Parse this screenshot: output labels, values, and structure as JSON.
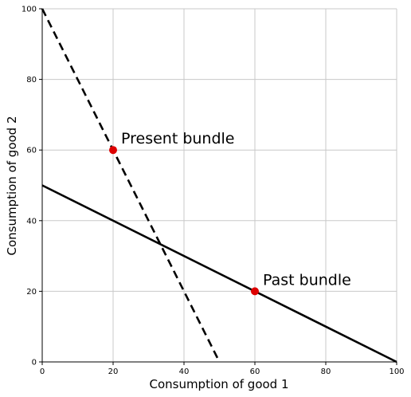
{
  "chart_data": {
    "type": "line",
    "title": "",
    "xlabel": "Consumption of good 1",
    "ylabel": "Consumption of good 2",
    "xlim": [
      0,
      100
    ],
    "ylim": [
      0,
      100
    ],
    "xticks": [
      0,
      20,
      40,
      60,
      80,
      100
    ],
    "yticks": [
      0,
      20,
      40,
      60,
      80,
      100
    ],
    "grid": true,
    "series": [
      {
        "style": "solid",
        "color": "#000000",
        "x": [
          0,
          100
        ],
        "y": [
          50,
          0
        ]
      },
      {
        "style": "dashed",
        "color": "#000000",
        "x": [
          0,
          50
        ],
        "y": [
          100,
          0
        ]
      }
    ],
    "points": [
      {
        "label": "Present bundle",
        "x": 20,
        "y": 60,
        "color": "#dd0000"
      },
      {
        "label": "Past bundle",
        "x": 60,
        "y": 20,
        "color": "#dd0000"
      }
    ]
  }
}
